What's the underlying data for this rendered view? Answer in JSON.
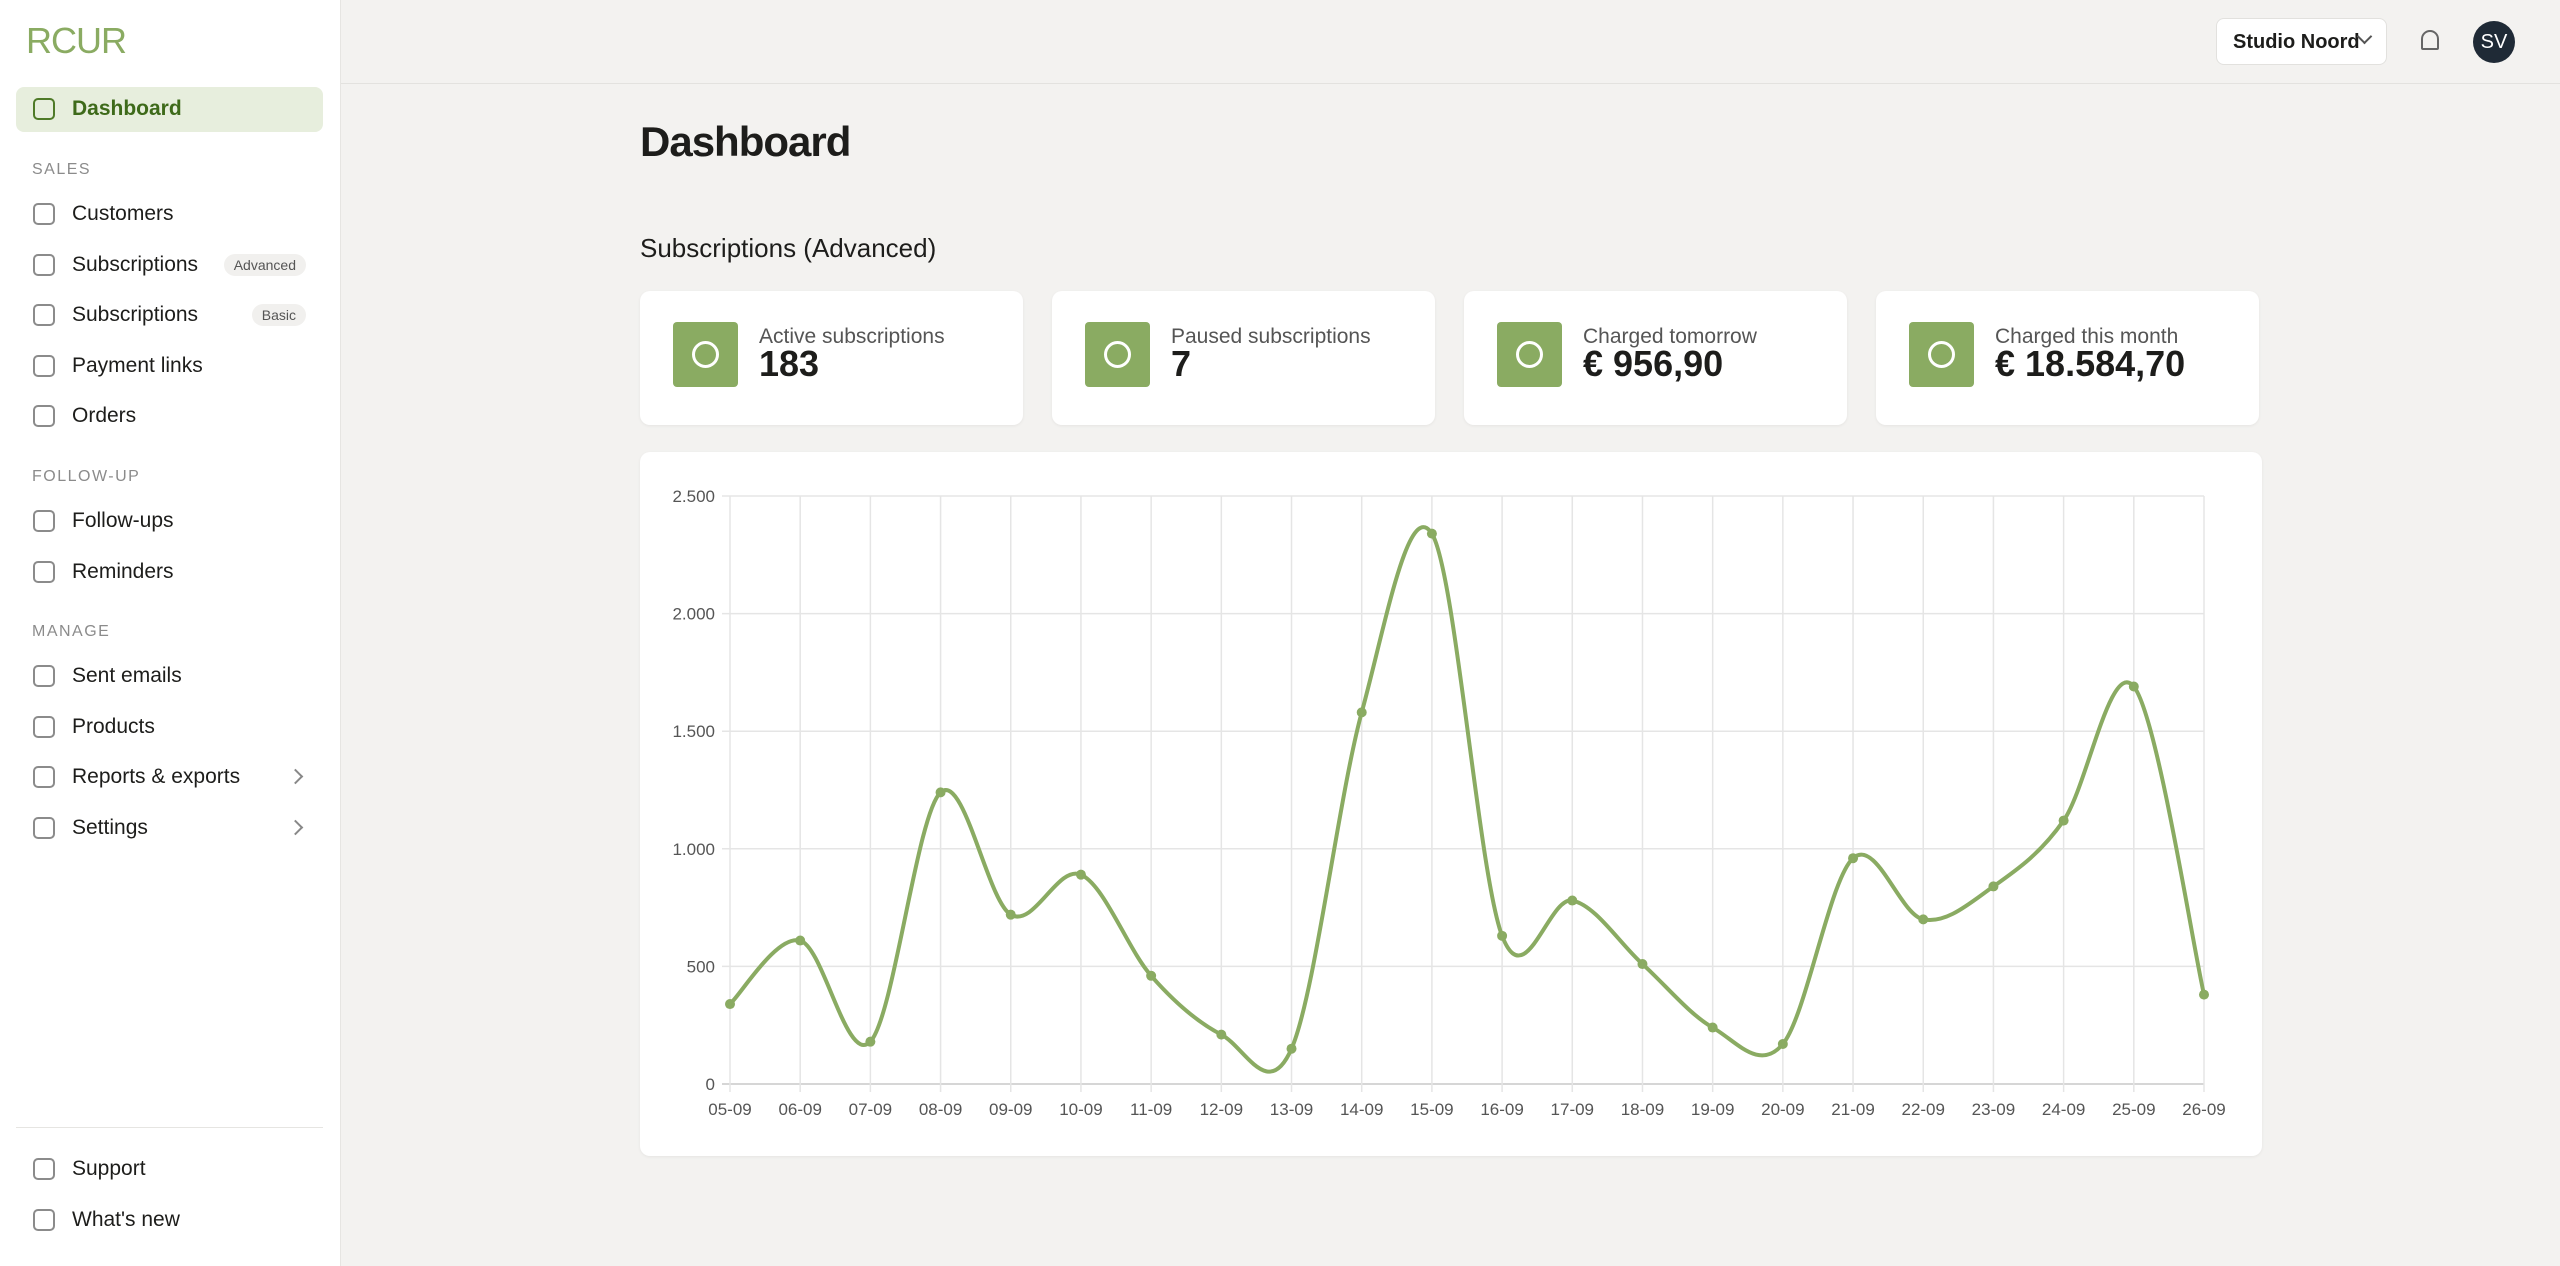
{
  "sidebar": {
    "logo": "RCUR",
    "dashboard": "Dashboard",
    "sections": [
      {
        "title": "SALES",
        "items": [
          {
            "label": "Customers"
          },
          {
            "label": "Subscriptions",
            "badge": "Advanced"
          },
          {
            "label": "Subscriptions",
            "badge": "Basic"
          },
          {
            "label": "Payment links"
          },
          {
            "label": "Orders"
          }
        ]
      },
      {
        "title": "FOLLOW-UP",
        "items": [
          {
            "label": "Follow-ups"
          },
          {
            "label": "Reminders"
          }
        ]
      },
      {
        "title": "MANAGE",
        "items": [
          {
            "label": "Sent emails"
          },
          {
            "label": "Products"
          },
          {
            "label": "Reports & exports"
          },
          {
            "label": "Settings"
          }
        ]
      }
    ],
    "footer": [
      "Support",
      "What's new"
    ]
  },
  "header": {
    "account": "Studio Noord",
    "avatar": "SV"
  },
  "page": {
    "title": "Dashboard",
    "section": "Subscriptions (Advanced)",
    "cards": [
      {
        "label": "Active subscriptions",
        "value": "183"
      },
      {
        "label": "Paused subscriptions",
        "value": "7"
      },
      {
        "label": "Charged tomorrow",
        "value": "€ 956,90"
      },
      {
        "label": "Charged this month",
        "value": "€ 18.584,70"
      }
    ]
  },
  "chart": {
    "type": "line",
    "color": "#8aab62",
    "grid": true,
    "categories": [
      "05-09",
      "06-09",
      "07-09",
      "08-09",
      "09-09",
      "10-09",
      "11-09",
      "12-09",
      "13-09",
      "14-09",
      "15-09",
      "16-09",
      "17-09",
      "18-09",
      "19-09",
      "20-09",
      "21-09",
      "22-09",
      "23-09",
      "24-09",
      "25-09",
      "26-09"
    ],
    "values": [
      340,
      610,
      180,
      1240,
      720,
      890,
      460,
      210,
      150,
      1580,
      2340,
      630,
      780,
      510,
      240,
      170,
      960,
      700,
      840,
      1120,
      1690,
      380
    ],
    "ylim": [
      0,
      2500
    ],
    "yticks": [
      0,
      500,
      {
        "value": 1000,
        "label": "1.000"
      },
      {
        "value": 1500,
        "label": "1.500"
      },
      {
        "value": 2000,
        "label": "2.000"
      },
      {
        "value": 2500,
        "label": "2.500"
      }
    ]
  }
}
